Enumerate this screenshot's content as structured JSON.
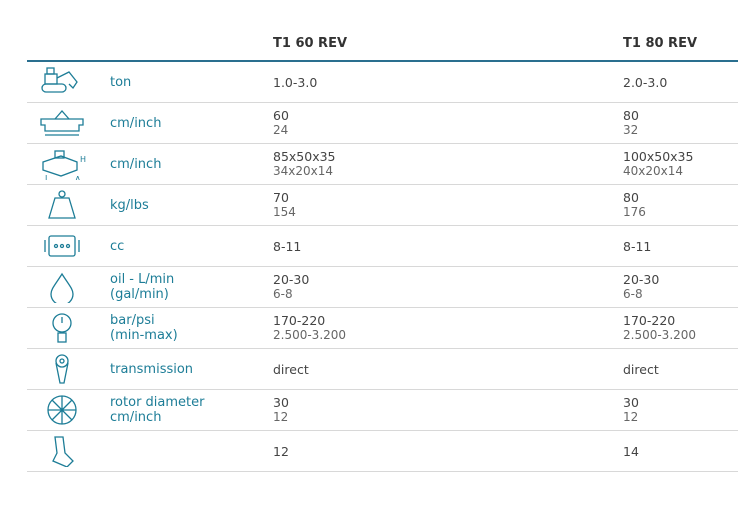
{
  "columns": [
    "T1 60 REV",
    "T1 80 REV"
  ],
  "rows": [
    {
      "icon": "excavator-icon",
      "label": "ton",
      "v1": [
        "1.0-3.0"
      ],
      "v2": [
        "2.0-3.0"
      ]
    },
    {
      "icon": "working-width-icon",
      "label": "cm/inch",
      "v1": [
        "60",
        "24"
      ],
      "v2": [
        "80",
        "32"
      ]
    },
    {
      "icon": "dimensions-icon",
      "label": "cm/inch",
      "v1": [
        "85x50x35",
        "34x20x14"
      ],
      "v2": [
        "100x50x35",
        "40x20x14"
      ]
    },
    {
      "icon": "weight-icon",
      "label": "kg/lbs",
      "v1": [
        "70",
        "154"
      ],
      "v2": [
        "80",
        "176"
      ]
    },
    {
      "icon": "engine-icon",
      "label": "cc",
      "v1": [
        "8-11"
      ],
      "v2": [
        "8-11"
      ]
    },
    {
      "icon": "oil-drop-icon",
      "label": "oil - L/min\n(gal/min)",
      "v1": [
        "20-30",
        "6-8"
      ],
      "v2": [
        "20-30",
        "6-8"
      ]
    },
    {
      "icon": "pressure-gauge-icon",
      "label": "bar/psi\n(min-max)",
      "v1": [
        "170-220",
        "2.500-3.200"
      ],
      "v2": [
        "170-220",
        "2.500-3.200"
      ]
    },
    {
      "icon": "transmission-icon",
      "label": "transmission",
      "v1": [
        "direct"
      ],
      "v2": [
        "direct"
      ]
    },
    {
      "icon": "rotor-icon",
      "label": "rotor diameter\ncm/inch",
      "v1": [
        "30",
        "12"
      ],
      "v2": [
        "30",
        "12"
      ]
    },
    {
      "icon": "tooth-icon",
      "label": "",
      "v1": [
        "12"
      ],
      "v2": [
        "14"
      ]
    }
  ],
  "colors": {
    "label": "#1d7d97",
    "rule": "#2a6f8f"
  }
}
